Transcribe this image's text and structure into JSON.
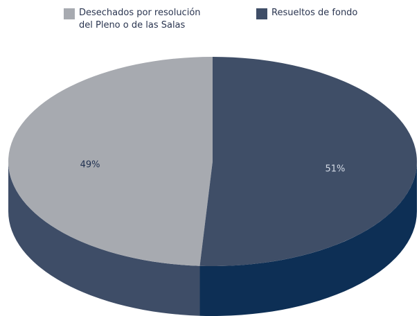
{
  "chart_data": {
    "type": "pie3d",
    "categories": [
      "Desechados por resolución del Pleno o de las Salas",
      "Resueltos de fondo"
    ],
    "values": [
      49,
      51
    ],
    "value_labels": [
      "49%",
      "51%"
    ],
    "colors": [
      "#a7aab0",
      "#3f4e67"
    ],
    "side_colors": [
      "#3e4d67",
      "#0d2f55"
    ],
    "label_colors": [
      "#1f3050",
      "#d4dbe6"
    ],
    "start_angle": 183.6,
    "legend": "top"
  }
}
